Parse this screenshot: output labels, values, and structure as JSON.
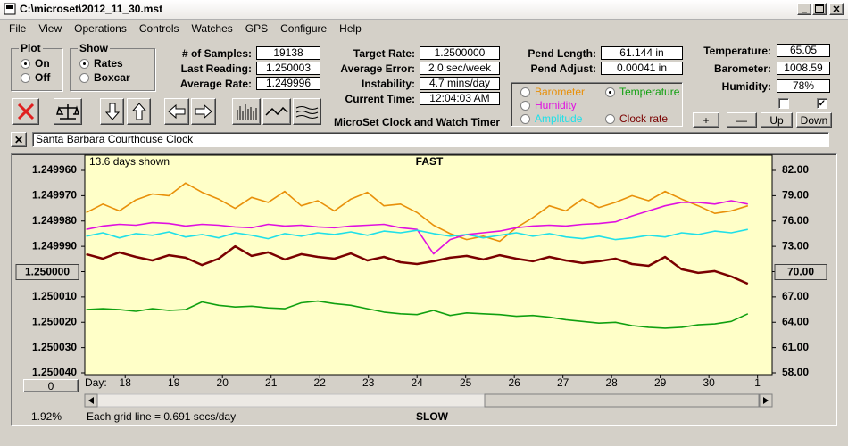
{
  "window": {
    "title": "C:\\microset\\2012_11_30.mst"
  },
  "menu": [
    "File",
    "View",
    "Operations",
    "Controls",
    "Watches",
    "GPS",
    "Configure",
    "Help"
  ],
  "plot_group": {
    "title": "Plot",
    "options": [
      "On",
      "Off"
    ]
  },
  "show_group": {
    "title": "Show",
    "options": [
      "Rates",
      "Boxcar"
    ]
  },
  "fields": [
    {
      "label": "# of Samples:",
      "value": "19138"
    },
    {
      "label": "Last Reading:",
      "value": "1.250003"
    },
    {
      "label": "Average Rate:",
      "value": "1.249996"
    },
    {
      "label": "Target Rate:",
      "value": "1.2500000"
    },
    {
      "label": "Average Error:",
      "value": "2.0 sec/week"
    },
    {
      "label": "Instability:",
      "value": "4.7 mins/day"
    },
    {
      "label": "Current Time:",
      "value": "12:04:03 AM"
    },
    {
      "label": "Pend Length:",
      "value": "61.144 in"
    },
    {
      "label": "Pend Adjust:",
      "value": "0.00041 in"
    },
    {
      "label": "Temperature:",
      "value": "65.05"
    },
    {
      "label": "Barometer:",
      "value": "1008.59"
    },
    {
      "label": "Humidity:",
      "value": "78%"
    }
  ],
  "app_title": "MicroSet Clock and Watch Timer",
  "buttons": [
    "+",
    "—",
    "Up",
    "Down"
  ],
  "clock_name": "Santa Barbara Courthouse Clock",
  "chart_data": {
    "type": "line",
    "days_shown": "13.6 days shown",
    "top_label": "FAST",
    "bottom_label": "SLOW",
    "footer": "Each grid line = 0.691 secs/day",
    "percent": "1.92%",
    "x_label": "Day:",
    "zero_button": "0",
    "x": [
      17.2,
      17.54,
      17.88,
      18.22,
      18.56,
      18.9,
      19.24,
      19.58,
      19.92,
      20.26,
      20.6,
      20.94,
      21.28,
      21.62,
      21.96,
      22.3,
      22.64,
      22.98,
      23.32,
      23.66,
      24.0,
      24.34,
      24.68,
      25.02,
      25.36,
      25.7,
      26.04,
      26.38,
      26.72,
      27.06,
      27.4,
      27.74,
      28.08,
      28.42,
      28.76,
      29.1,
      29.44,
      29.78,
      30.12,
      30.46,
      30.8
    ],
    "xlim": [
      17.17,
      31.3
    ],
    "xticks": [
      18,
      19,
      20,
      21,
      22,
      23,
      24,
      25,
      26,
      27,
      28,
      29,
      30,
      {
        "value": 31,
        "label": "1"
      }
    ],
    "ylim": [
      1.24996,
      1.25004
    ],
    "y_inverted": true,
    "yticks": [
      {
        "value": 1.24996,
        "label": "1.249960"
      },
      {
        "value": 1.24997,
        "label": "1.249970"
      },
      {
        "value": 1.24998,
        "label": "1.249980"
      },
      {
        "value": 1.24999,
        "label": "1.249990"
      },
      {
        "value": 1.25,
        "label": "1.250000"
      },
      {
        "value": 1.25001,
        "label": "1.250010"
      },
      {
        "value": 1.25002,
        "label": "1.250020"
      },
      {
        "value": 1.25003,
        "label": "1.250030"
      },
      {
        "value": 1.25004,
        "label": "1.250040"
      }
    ],
    "y2lim": [
      58,
      82
    ],
    "y2ticks": [
      {
        "value": 82,
        "label": "82.00"
      },
      {
        "value": 79,
        "label": "79.00"
      },
      {
        "value": 76,
        "label": "76.00"
      },
      {
        "value": 73,
        "label": "73.00"
      },
      {
        "value": 70,
        "label": "70.00"
      },
      {
        "value": 67,
        "label": "67.00"
      },
      {
        "value": 64,
        "label": "64.00"
      },
      {
        "value": 61,
        "label": "61.00"
      },
      {
        "value": 58,
        "label": "58.00"
      }
    ],
    "grid": false,
    "series": [
      {
        "name": "Barometer",
        "color": "#e8900a",
        "axis": "y2",
        "values": [
          77.0,
          78.0,
          77.2,
          78.5,
          79.2,
          79.0,
          80.5,
          79.4,
          78.6,
          77.5,
          78.8,
          78.2,
          79.5,
          77.8,
          78.4,
          77.2,
          78.6,
          79.4,
          77.8,
          78.0,
          77.0,
          75.5,
          74.5,
          73.8,
          74.2,
          73.6,
          75.2,
          76.4,
          77.8,
          77.2,
          78.6,
          77.6,
          78.2,
          79.0,
          78.4,
          79.5,
          78.6,
          77.8,
          76.9,
          77.2,
          77.8
        ]
      },
      {
        "name": "Temperature",
        "color": "#10a010",
        "axis": "y2",
        "values": [
          65.5,
          65.6,
          65.5,
          65.3,
          65.6,
          65.4,
          65.5,
          66.4,
          66.0,
          65.8,
          65.9,
          65.7,
          65.6,
          66.3,
          66.5,
          66.2,
          66.0,
          65.6,
          65.2,
          65.0,
          64.9,
          65.4,
          64.8,
          65.1,
          65.0,
          64.9,
          64.7,
          64.8,
          64.6,
          64.3,
          64.1,
          63.9,
          64.0,
          63.6,
          63.4,
          63.3,
          63.4,
          63.7,
          63.8,
          64.1,
          65.0
        ]
      },
      {
        "name": "Humidity",
        "color": "#e010e0",
        "axis": "y2",
        "values": [
          75.0,
          75.4,
          75.6,
          75.5,
          75.8,
          75.7,
          75.4,
          75.6,
          75.5,
          75.3,
          75.2,
          75.6,
          75.4,
          75.5,
          75.3,
          75.2,
          75.4,
          75.5,
          75.6,
          75.2,
          75.0,
          72.1,
          73.8,
          74.4,
          74.6,
          74.8,
          75.2,
          75.4,
          75.5,
          75.4,
          75.6,
          75.7,
          75.9,
          76.6,
          77.2,
          77.8,
          78.2,
          78.2,
          78.0,
          78.4,
          78.0
        ]
      },
      {
        "name": "Amplitude",
        "color": "#20e0e8",
        "axis": "y2",
        "values": [
          74.2,
          74.6,
          74.0,
          74.5,
          74.3,
          74.7,
          74.1,
          74.4,
          74.0,
          74.6,
          74.3,
          73.9,
          74.5,
          74.2,
          74.6,
          74.4,
          74.7,
          74.3,
          74.8,
          74.6,
          74.9,
          74.5,
          74.2,
          74.4,
          74.0,
          74.3,
          74.6,
          74.2,
          74.5,
          74.1,
          73.9,
          74.2,
          73.8,
          74.0,
          74.3,
          74.1,
          74.6,
          74.4,
          74.8,
          74.6,
          75.0
        ]
      },
      {
        "name": "Clock rate",
        "color": "#7a0000",
        "axis": "y",
        "values": [
          1.2499931,
          1.2499949,
          1.2499924,
          1.2499942,
          1.2499956,
          1.2499935,
          1.2499945,
          1.2499974,
          1.2499949,
          1.24999,
          1.2499938,
          1.2499924,
          1.2499952,
          1.2499931,
          1.2499942,
          1.2499949,
          1.2499928,
          1.2499956,
          1.2499942,
          1.2499963,
          1.249997,
          1.2499959,
          1.2499945,
          1.2499938,
          1.2499952,
          1.2499935,
          1.2499949,
          1.2499959,
          1.2499942,
          1.2499956,
          1.2499966,
          1.2499959,
          1.2499949,
          1.249997,
          1.2499977,
          1.2499942,
          1.2499991,
          1.2500005,
          1.2499998,
          1.2500019,
          1.2500048
        ]
      }
    ]
  }
}
